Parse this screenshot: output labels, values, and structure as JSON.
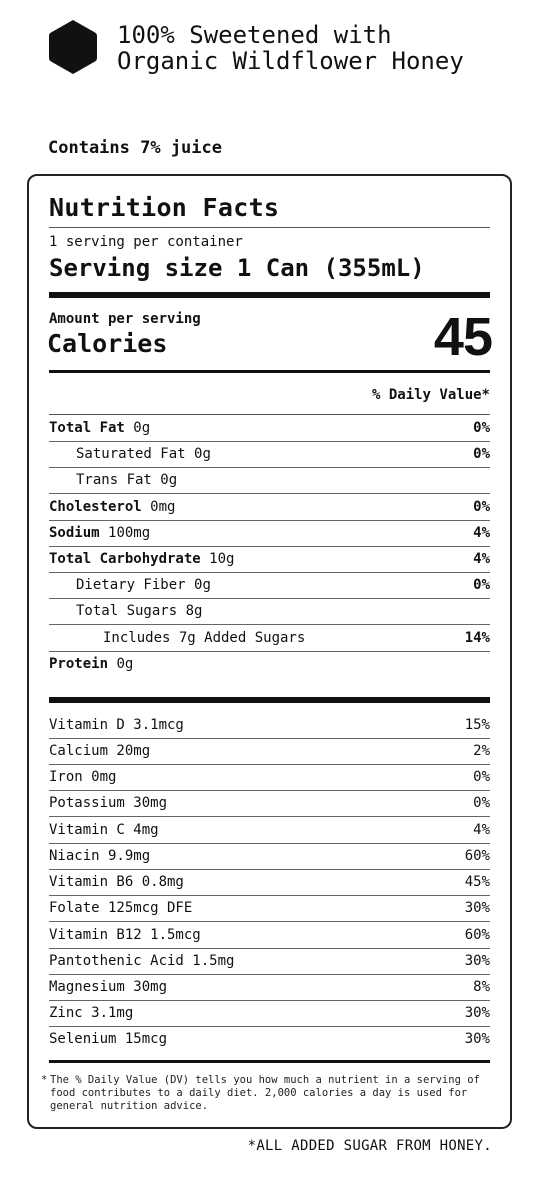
{
  "header": {
    "line1": "100% Sweetened with",
    "line2": "Organic Wildflower Honey",
    "logo_icon": "hexagon-icon"
  },
  "juice_note": "Contains 7% juice",
  "panel": {
    "title": "Nutrition Facts",
    "servings": "1 serving per container",
    "serving_size": "Serving size 1 Can (355mL)",
    "amount_label": "Amount per serving",
    "calories_label": "Calories",
    "calories_value": "45",
    "dv_header": "% Daily Value*",
    "nutrients": [
      {
        "name": "Total Fat",
        "amount": "0g",
        "dv": "0%"
      },
      {
        "name": "Saturated Fat",
        "amount": "0g",
        "dv": "0%"
      },
      {
        "name": "Trans Fat",
        "amount": "0g",
        "dv": ""
      },
      {
        "name": "Cholesterol",
        "amount": "0mg",
        "dv": "0%"
      },
      {
        "name": "Sodium",
        "amount": "100mg",
        "dv": "4%"
      },
      {
        "name": "Total Carbohydrate",
        "amount": "10g",
        "dv": "4%"
      },
      {
        "name": "Dietary Fiber",
        "amount": "0g",
        "dv": "0%"
      },
      {
        "name": "Total Sugars",
        "amount": "8g",
        "dv": ""
      },
      {
        "name": "Includes 7g Added Sugars",
        "amount": "",
        "dv": "14%"
      },
      {
        "name": "Protein",
        "amount": "0g",
        "dv": ""
      }
    ],
    "vitamins": [
      {
        "name": "Vitamin D 3.1mcg",
        "dv": "15%"
      },
      {
        "name": "Calcium 20mg",
        "dv": "2%"
      },
      {
        "name": "Iron 0mg",
        "dv": "0%"
      },
      {
        "name": "Potassium 30mg",
        "dv": "0%"
      },
      {
        "name": "Vitamin C 4mg",
        "dv": "4%"
      },
      {
        "name": "Niacin 9.9mg",
        "dv": "60%"
      },
      {
        "name": "Vitamin B6 0.8mg",
        "dv": "45%"
      },
      {
        "name": "Folate 125mcg DFE",
        "dv": "30%"
      },
      {
        "name": "Vitamin B12 1.5mcg",
        "dv": "60%"
      },
      {
        "name": "Pantothenic Acid 1.5mg",
        "dv": "30%"
      },
      {
        "name": "Magnesium 30mg",
        "dv": "8%"
      },
      {
        "name": "Zinc 3.1mg",
        "dv": "30%"
      },
      {
        "name": "Selenium 15mcg",
        "dv": "30%"
      }
    ],
    "footnote_star": "*",
    "footnote": "The % Daily Value (DV) tells you how much a nutrient in a serving of food contributes to a daily diet. 2,000 calories a day is used for general nutrition advice."
  },
  "sugar_note": "*ALL ADDED SUGAR FROM HONEY."
}
